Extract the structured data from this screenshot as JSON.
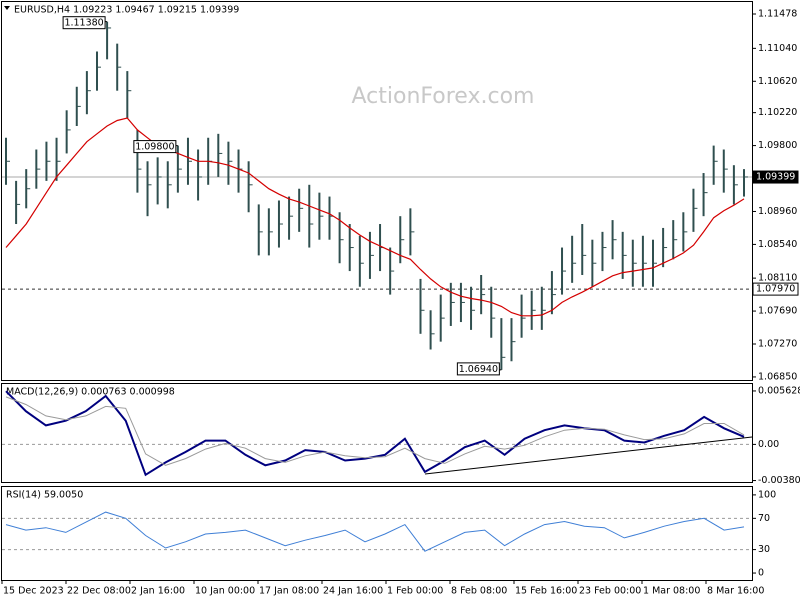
{
  "watermark": "ActionForex.com",
  "time_axis": {
    "labels": [
      "15 Dec 2023",
      "22 Dec 08:00",
      "2 Jan 16:00",
      "10 Jan 00:00",
      "17 Jan 08:00",
      "24 Jan 16:00",
      "1 Feb 00:00",
      "8 Feb 08:00",
      "15 Feb 16:00",
      "23 Feb 00:00",
      "1 Mar 08:00",
      "8 Mar 16:00"
    ]
  },
  "chart_data": [
    {
      "type": "ohlc",
      "title": "EURUSD,H4  1.09223 1.09467 1.09215 1.09399",
      "color": "#2f4f4f",
      "high": [
        1.099,
        1.0935,
        1.095,
        1.0975,
        1.0985,
        1.099,
        1.1025,
        1.1055,
        1.1075,
        1.11,
        1.1138,
        1.111,
        1.1075,
        1.1,
        1.096,
        1.0965,
        1.096,
        1.098,
        1.099,
        1.0975,
        1.099,
        1.0995,
        1.0985,
        1.0975,
        1.096,
        1.0905,
        1.09,
        1.091,
        1.0915,
        1.0925,
        1.093,
        1.092,
        1.0915,
        1.0895,
        1.088,
        1.0865,
        1.087,
        1.088,
        1.085,
        1.089,
        1.09,
        1.081,
        1.077,
        1.079,
        1.0805,
        1.0805,
        1.08,
        1.0815,
        1.08,
        1.076,
        1.076,
        1.079,
        1.0795,
        1.08,
        1.082,
        1.085,
        1.0865,
        1.088,
        1.086,
        1.087,
        1.0885,
        1.087,
        1.086,
        1.0865,
        1.086,
        1.0875,
        1.0885,
        1.0895,
        1.0925,
        1.0945,
        1.098,
        1.0975,
        1.0955,
        1.095
      ],
      "low": [
        1.093,
        1.088,
        1.09,
        1.0925,
        1.0935,
        1.0935,
        1.097,
        1.1005,
        1.102,
        1.105,
        1.109,
        1.105,
        1.1015,
        1.092,
        1.089,
        1.0905,
        1.09,
        1.092,
        1.093,
        1.091,
        1.093,
        1.094,
        1.093,
        1.092,
        1.0895,
        1.084,
        1.084,
        1.085,
        1.086,
        1.087,
        1.085,
        1.086,
        1.086,
        1.083,
        1.082,
        1.08,
        1.081,
        1.082,
        1.079,
        1.083,
        1.084,
        1.074,
        1.072,
        1.073,
        1.075,
        1.0755,
        1.0745,
        1.0765,
        1.0735,
        1.0694,
        1.0705,
        1.0735,
        1.0745,
        1.0745,
        1.0765,
        1.079,
        1.0805,
        1.0815,
        1.08,
        1.082,
        1.0835,
        1.081,
        1.08,
        1.08,
        1.08,
        1.0825,
        1.0835,
        1.0845,
        1.087,
        1.089,
        1.093,
        1.092,
        1.0905,
        1.0915
      ],
      "close": [
        1.096,
        1.0905,
        1.0925,
        1.095,
        1.096,
        1.096,
        1.1,
        1.103,
        1.105,
        1.108,
        1.113,
        1.108,
        1.105,
        1.095,
        1.093,
        1.094,
        1.093,
        1.095,
        1.096,
        1.094,
        1.096,
        1.097,
        1.096,
        1.095,
        1.093,
        1.087,
        1.087,
        1.088,
        1.089,
        1.09,
        1.088,
        1.089,
        1.089,
        1.086,
        1.085,
        1.083,
        1.084,
        1.085,
        1.082,
        1.086,
        1.087,
        1.077,
        1.074,
        1.076,
        1.078,
        1.078,
        1.077,
        1.079,
        1.076,
        1.071,
        1.073,
        1.076,
        1.077,
        1.077,
        1.079,
        1.082,
        1.083,
        1.084,
        1.083,
        1.085,
        1.086,
        1.084,
        1.083,
        1.083,
        1.083,
        1.085,
        1.086,
        1.087,
        1.09,
        1.092,
        1.096,
        1.095,
        1.093,
        1.094
      ],
      "series": [
        {
          "color": "#d40000",
          "values": [
            1.085,
            1.0865,
            1.088,
            1.09,
            1.092,
            1.094,
            1.0955,
            1.097,
            1.0985,
            1.0995,
            1.1005,
            1.1012,
            1.1015,
            1.1,
            1.099,
            1.098,
            1.0975,
            1.097,
            1.0965,
            1.096,
            1.096,
            1.0958,
            1.0955,
            1.095,
            1.0945,
            1.0935,
            1.0925,
            1.0918,
            1.0912,
            1.0908,
            1.0903,
            1.0898,
            1.0893,
            1.0885,
            1.0875,
            1.0866,
            1.0858,
            1.0852,
            1.0846,
            1.084,
            1.0835,
            1.0822,
            1.081,
            1.08,
            1.0793,
            1.0788,
            1.0785,
            1.0783,
            1.078,
            1.0775,
            1.0767,
            1.0763,
            1.0763,
            1.0764,
            1.077,
            1.078,
            1.0787,
            1.0793,
            1.08,
            1.0807,
            1.0814,
            1.0818,
            1.082,
            1.0822,
            1.0824,
            1.083,
            1.0836,
            1.0843,
            1.0853,
            1.087,
            1.0888,
            1.0897,
            1.0904,
            1.0912
          ]
        }
      ],
      "ylim": [
        1.06811,
        1.11631
      ],
      "yticks": [
        1.11478,
        {
          "value": 1.1104,
          "label": "1.11040"
        },
        {
          "value": 1.1062,
          "label": "1.10620"
        },
        {
          "value": 1.1022,
          "label": "1.10220"
        },
        {
          "value": 1.098,
          "label": "1.09800"
        },
        {
          "value": 1.0938,
          "label": "1.09380"
        },
        {
          "value": 1.0896,
          "label": "1.08960"
        },
        {
          "value": 1.0854,
          "label": "1.08540"
        },
        {
          "value": 1.0811,
          "label": "1.08110"
        },
        {
          "value": 1.0769,
          "label": "1.07690"
        },
        {
          "value": 1.0727,
          "label": "1.07270"
        },
        {
          "value": 1.0685,
          "label": "1.06850"
        }
      ],
      "hlines": [
        {
          "value": 1.09399,
          "label": "1.09399",
          "style": "solid"
        },
        {
          "value": 1.0797,
          "label": "1.07970",
          "style": "dashed"
        }
      ],
      "annotations": [
        {
          "value": 1.1138,
          "label": "1.11380",
          "kind": "high"
        },
        {
          "value": 1.098,
          "label": "1.09800",
          "kind": "high"
        },
        {
          "value": 1.0694,
          "label": "1.06940",
          "kind": "low"
        }
      ]
    },
    {
      "type": "macd",
      "title": "MACD(12,26,9) 0.000763 0.000998",
      "series": [
        {
          "color": "#00007f",
          "width": 2,
          "values": [
            0.0056,
            0.0035,
            0.002,
            0.0025,
            0.0035,
            0.0051,
            0.0025,
            -0.0032,
            -0.0019,
            -0.0008,
            0.0004,
            0.0004,
            -0.0011,
            -0.0022,
            -0.0017,
            -0.0006,
            -0.0008,
            -0.0017,
            -0.0015,
            -0.0011,
            0.0006,
            -0.0029,
            -0.0017,
            -0.0003,
            0.0004,
            -0.0011,
            0.0006,
            0.0015,
            0.002,
            0.0017,
            0.0015,
            0.0004,
            0.0002,
            0.0009,
            0.0015,
            0.0029,
            0.0017,
            0.0008
          ]
        },
        {
          "color": "#9a9a9a",
          "width": 1,
          "values": [
            0.005,
            0.0042,
            0.003,
            0.0026,
            0.003,
            0.004,
            0.0038,
            -0.001,
            -0.0022,
            -0.0015,
            -0.0005,
            0.0001,
            -0.0004,
            -0.0015,
            -0.0019,
            -0.0012,
            -0.0008,
            -0.0012,
            -0.0014,
            -0.0013,
            -0.0004,
            -0.0015,
            -0.002,
            -0.001,
            -0.0002,
            -0.0005,
            -0.0001,
            0.0008,
            0.0015,
            0.0017,
            0.0016,
            0.001,
            0.0005,
            0.0006,
            0.0011,
            0.0022,
            0.0022,
            0.001
          ]
        }
      ],
      "ylim": [
        -0.00396,
        0.00636
      ],
      "yticks": [
        0.005628,
        {
          "value": 0,
          "label": "0.00"
        },
        -0.003807
      ]
    },
    {
      "type": "line",
      "title": "RSI(14) 59.0050",
      "series": [
        {
          "color": "#3f7fd6",
          "width": 1,
          "values": [
            62,
            55,
            58,
            52,
            65,
            78,
            70,
            48,
            32,
            40,
            50,
            52,
            55,
            45,
            35,
            42,
            48,
            55,
            40,
            50,
            62,
            28,
            40,
            52,
            55,
            35,
            50,
            62,
            66,
            60,
            58,
            45,
            52,
            60,
            66,
            70,
            55,
            59
          ]
        }
      ],
      "ylim": [
        -8.9,
        110.1
      ],
      "yticks": [
        100,
        70,
        30,
        0
      ]
    }
  ]
}
